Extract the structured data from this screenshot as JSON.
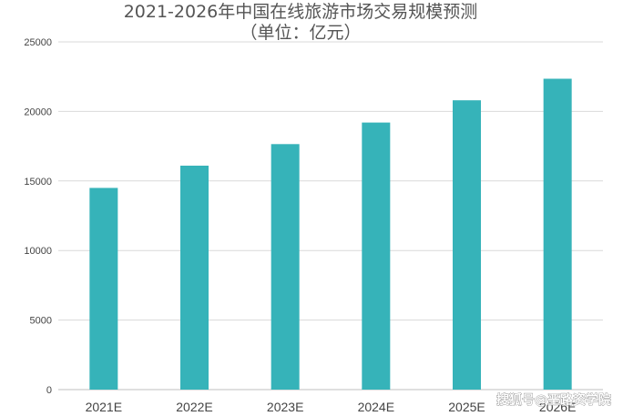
{
  "title_line1": "2021-2026年中国在线旅游市场交易规模预测",
  "title_line2": "（单位：亿元）",
  "watermark": "搜狐号@垩路资学院",
  "chart_data": {
    "type": "bar",
    "categories": [
      "2021E",
      "2022E",
      "2023E",
      "2024E",
      "2025E",
      "2026E"
    ],
    "values": [
      14500,
      16100,
      17650,
      19200,
      20800,
      22350
    ],
    "y_ticks": [
      "0",
      "5000",
      "10000",
      "15000",
      "20000",
      "25000"
    ],
    "ylim": [
      0,
      25000
    ],
    "grid": true,
    "legend": "none",
    "colors": {
      "bar": "#36b3b9",
      "grid": "#d9d9d9",
      "axis": "#bfbfbf"
    }
  }
}
